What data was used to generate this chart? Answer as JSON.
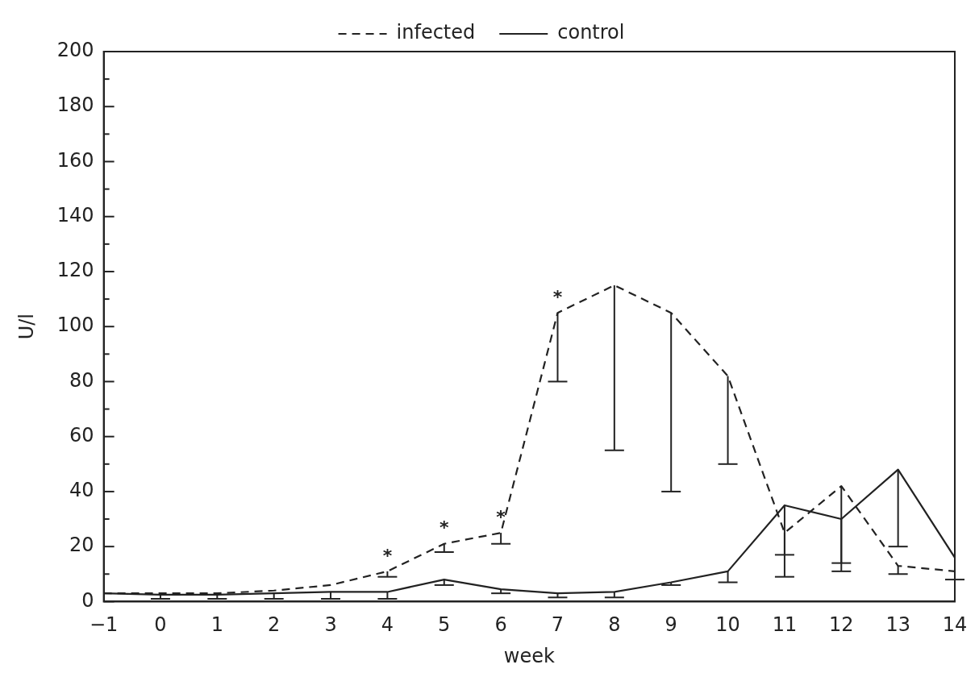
{
  "chart_data": {
    "type": "line",
    "xlabel": "week",
    "ylabel": "U/l",
    "x": [
      -1,
      0,
      1,
      2,
      3,
      4,
      5,
      6,
      7,
      8,
      9,
      10,
      11,
      12,
      13,
      14
    ],
    "xlim": [
      -1,
      14
    ],
    "xticks": [
      {
        "value": -1,
        "label": "−1"
      },
      0,
      1,
      2,
      3,
      4,
      5,
      6,
      7,
      8,
      9,
      10,
      11,
      12,
      13,
      14
    ],
    "ylim": [
      0,
      200
    ],
    "yticks": [
      0,
      {
        "value": 10,
        "label": null
      },
      20,
      {
        "value": 30,
        "label": null
      },
      40,
      {
        "value": 50,
        "label": null
      },
      60,
      {
        "value": 70,
        "label": null
      },
      80,
      {
        "value": 90,
        "label": null
      },
      100,
      {
        "value": 110,
        "label": null
      },
      120,
      {
        "value": 130,
        "label": null
      },
      140,
      {
        "value": 150,
        "label": null
      },
      160,
      {
        "value": 170,
        "label": null
      },
      180,
      {
        "value": 190,
        "label": null
      },
      200
    ],
    "grid": false,
    "legend": "top",
    "marker": "none",
    "series": [
      {
        "name": "infected",
        "color": "#222222",
        "line_style": "dashed",
        "values": [
          3,
          3,
          3,
          4,
          6,
          11,
          21,
          25,
          105,
          115,
          105,
          82,
          25,
          42,
          13,
          11
        ],
        "errors": [
          null,
          null,
          null,
          null,
          null,
          [
            9,
            11
          ],
          [
            18,
            21
          ],
          [
            21,
            25
          ],
          [
            80,
            105
          ],
          [
            55,
            115
          ],
          [
            40,
            105
          ],
          [
            50,
            82
          ],
          [
            17,
            25
          ],
          [
            14,
            42
          ],
          [
            10,
            13
          ],
          [
            8,
            11
          ]
        ]
      },
      {
        "name": "control",
        "color": "#222222",
        "line_style": "solid",
        "values": [
          3,
          2.5,
          2.5,
          3,
          3.5,
          3.5,
          8,
          4.5,
          3,
          3.5,
          7,
          11,
          35,
          30,
          48,
          16
        ],
        "errors": [
          null,
          [
            1,
            2.5
          ],
          [
            1,
            2.5
          ],
          [
            1,
            3
          ],
          [
            1,
            3.5
          ],
          [
            1,
            3.5
          ],
          [
            6,
            8
          ],
          [
            3,
            4.5
          ],
          [
            1.5,
            3
          ],
          [
            1.5,
            3.5
          ],
          [
            6,
            7
          ],
          [
            7,
            11
          ],
          [
            9,
            35
          ],
          [
            11,
            30
          ],
          [
            20,
            48
          ],
          null
        ]
      }
    ],
    "annotations": [
      {
        "text": "*",
        "x": 4,
        "y": 11
      },
      {
        "text": "*",
        "x": 5,
        "y": 21
      },
      {
        "text": "*",
        "x": 6,
        "y": 25
      },
      {
        "text": "*",
        "x": 7,
        "y": 105
      }
    ]
  }
}
